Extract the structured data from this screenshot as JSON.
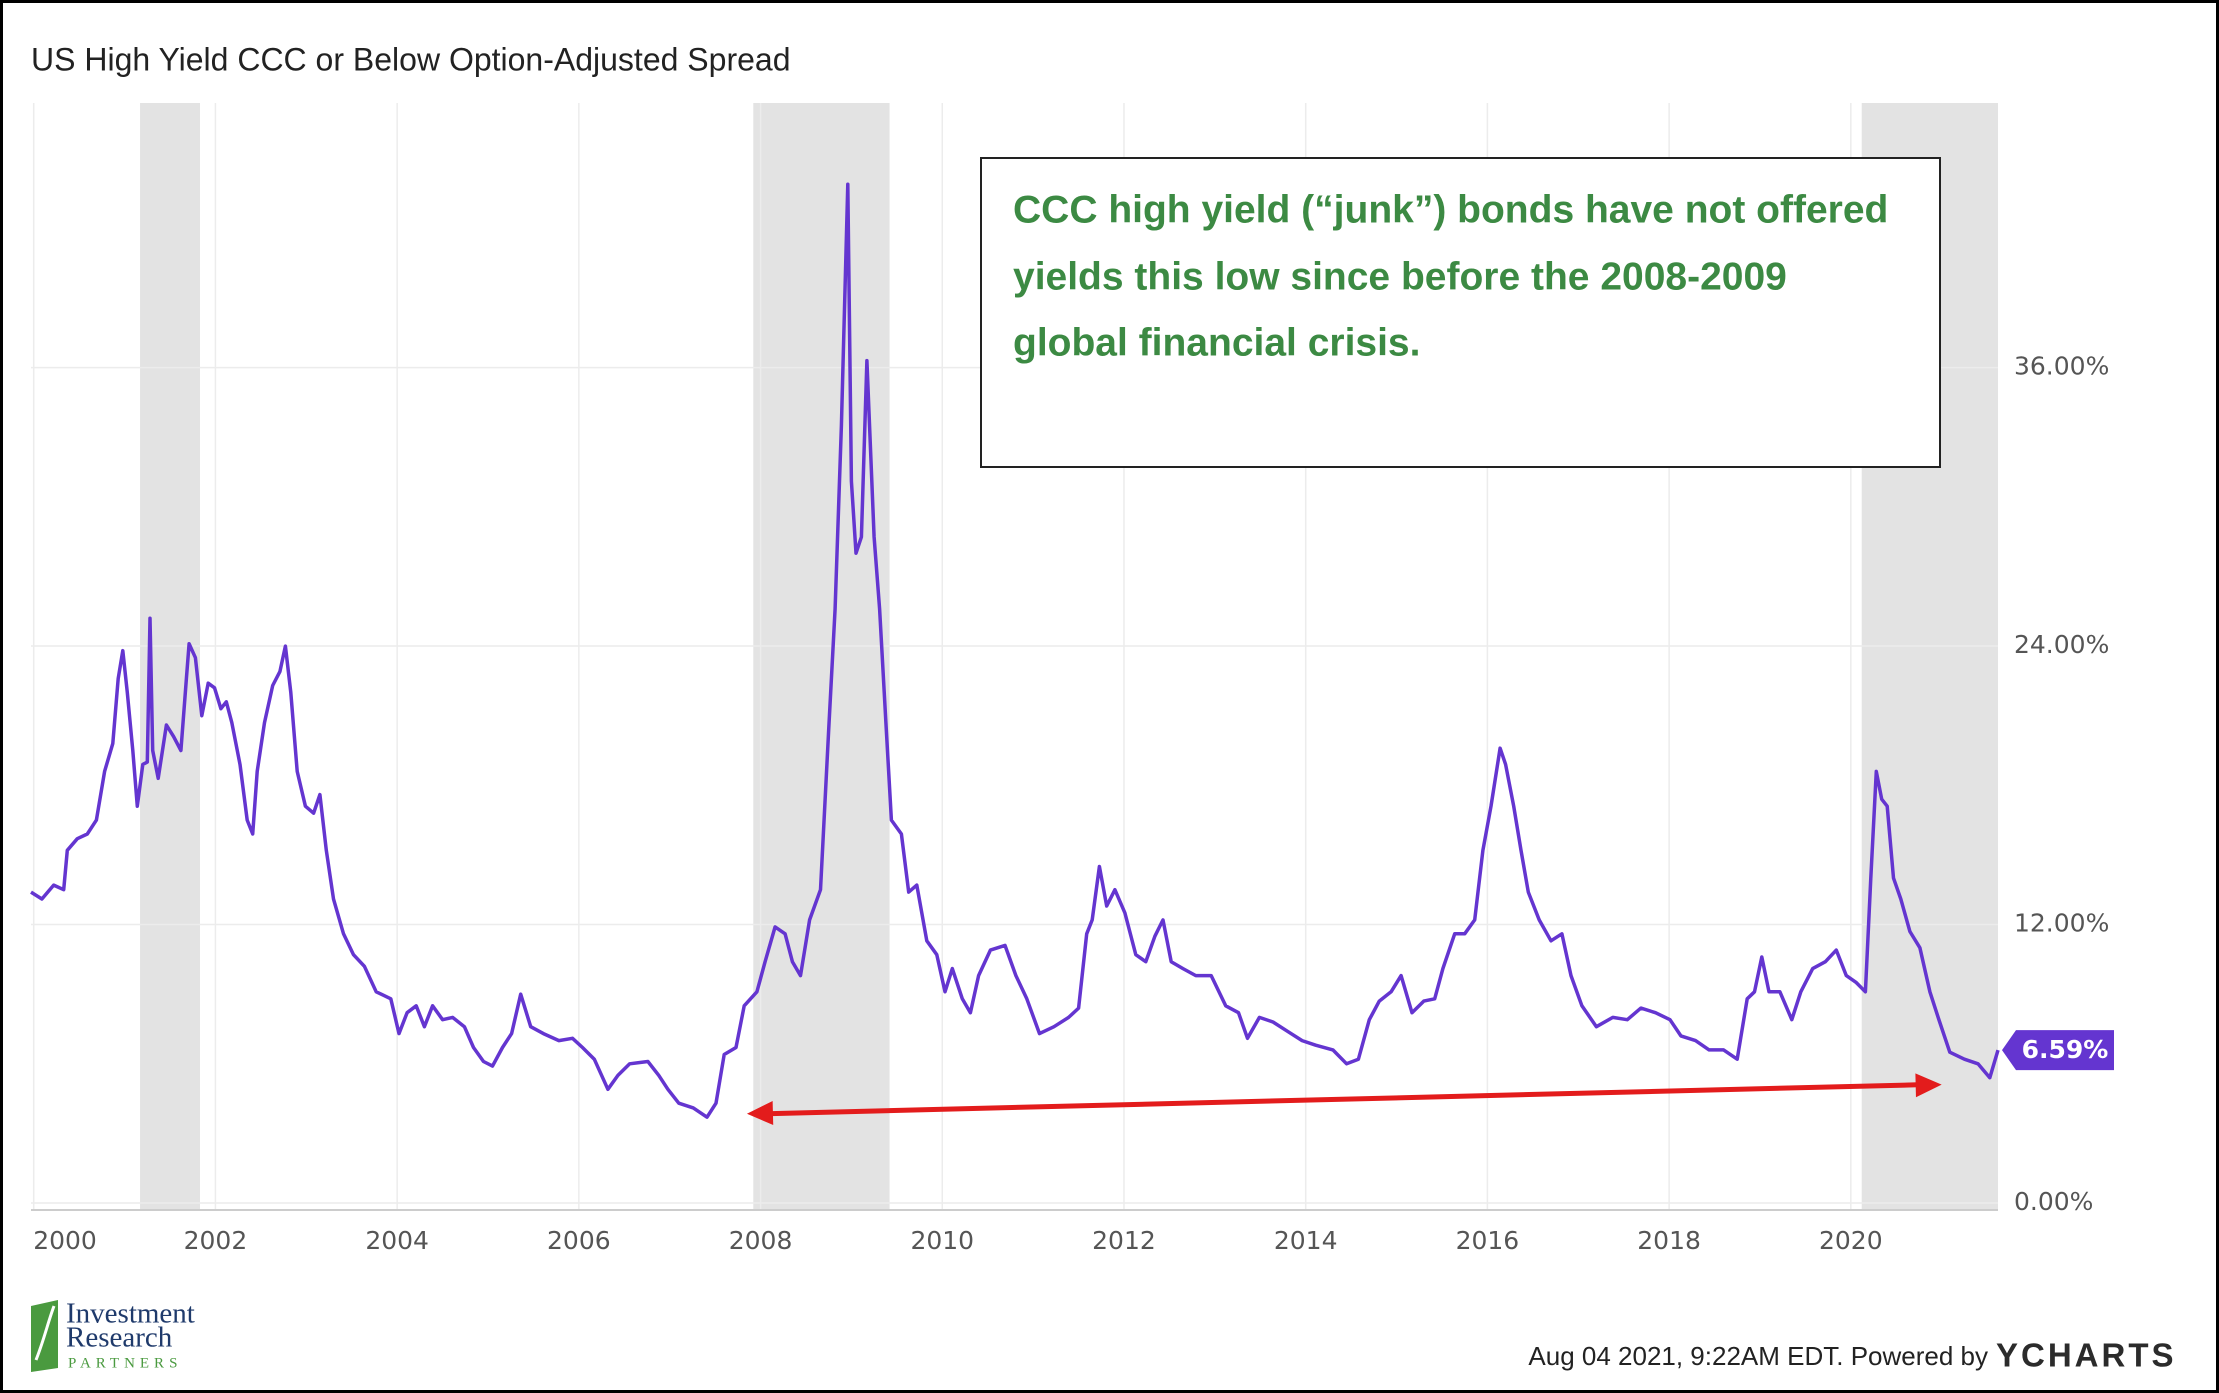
{
  "chart_data": {
    "type": "line",
    "title": "US High Yield CCC or Below Option-Adjusted Spread",
    "annotation": [
      "CCC high yield (“junk”) bonds have not offered",
      "yields this low since before the 2008-2009",
      "global financial crisis."
    ],
    "color": "#6435d0",
    "x": [
      1999.97,
      2000.09,
      2000.22,
      2000.33,
      2000.37,
      2000.48,
      2000.59,
      2000.69,
      2000.78,
      2000.87,
      2000.93,
      2000.98,
      2001.03,
      2001.09,
      2001.14,
      2001.2,
      2001.25,
      2001.28,
      2001.31,
      2001.37,
      2001.46,
      2001.54,
      2001.62,
      2001.68,
      2001.71,
      2001.78,
      2001.85,
      2001.92,
      2001.99,
      2002.06,
      2002.12,
      2002.18,
      2002.27,
      2002.35,
      2002.41,
      2002.46,
      2002.54,
      2002.63,
      2002.71,
      2002.77,
      2002.83,
      2002.9,
      2002.99,
      2003.08,
      2003.15,
      2003.22,
      2003.3,
      2003.41,
      2003.52,
      2003.64,
      2003.77,
      2003.93,
      2004.02,
      2004.11,
      2004.21,
      2004.3,
      2004.39,
      2004.5,
      2004.61,
      2004.74,
      2004.84,
      2004.95,
      2005.05,
      2005.16,
      2005.26,
      2005.36,
      2005.47,
      2005.61,
      2005.78,
      2005.93,
      2006.04,
      2006.17,
      2006.32,
      2006.43,
      2006.56,
      2006.76,
      2006.88,
      2006.98,
      2007.1,
      2007.26,
      2007.41,
      2007.51,
      2007.6,
      2007.73,
      2007.82,
      2007.96,
      2008.05,
      2008.16,
      2008.27,
      2008.35,
      2008.44,
      2008.54,
      2008.66,
      2008.75,
      2008.82,
      2008.89,
      2008.96,
      2009.0,
      2009.05,
      2009.11,
      2009.17,
      2009.25,
      2009.31,
      2009.38,
      2009.44,
      2009.55,
      2009.63,
      2009.72,
      2009.83,
      2009.94,
      2010.03,
      2010.11,
      2010.22,
      2010.31,
      2010.4,
      2010.53,
      2010.69,
      2010.81,
      2010.93,
      2011.07,
      2011.23,
      2011.39,
      2011.5,
      2011.59,
      2011.65,
      2011.73,
      2011.81,
      2011.9,
      2012.01,
      2012.13,
      2012.24,
      2012.34,
      2012.43,
      2012.52,
      2012.65,
      2012.79,
      2012.96,
      2013.12,
      2013.26,
      2013.36,
      2013.49,
      2013.64,
      2013.8,
      2013.96,
      2014.11,
      2014.3,
      2014.45,
      2014.58,
      2014.7,
      2014.81,
      2014.94,
      2015.05,
      2015.17,
      2015.3,
      2015.42,
      2015.51,
      2015.64,
      2015.75,
      2015.86,
      2015.95,
      2016.04,
      2016.14,
      2016.2,
      2016.29,
      2016.37,
      2016.45,
      2016.57,
      2016.7,
      2016.82,
      2016.92,
      2017.04,
      2017.2,
      2017.38,
      2017.54,
      2017.69,
      2017.85,
      2018.01,
      2018.13,
      2018.29,
      2018.44,
      2018.6,
      2018.75,
      2018.86,
      2018.94,
      2019.02,
      2019.1,
      2019.22,
      2019.35,
      2019.45,
      2019.58,
      2019.72,
      2019.84,
      2019.95,
      2020.06,
      2020.16,
      2020.22,
      2020.28,
      2020.34,
      2020.4,
      2020.47,
      2020.55,
      2020.65,
      2020.76,
      2020.87,
      2020.97,
      2021.09,
      2021.25,
      2021.4,
      2021.53,
      2021.62
    ],
    "values": [
      13.4,
      13.1,
      13.7,
      13.5,
      15.2,
      15.7,
      15.9,
      16.5,
      18.6,
      19.8,
      22.6,
      23.8,
      22.0,
      19.5,
      17.1,
      18.9,
      19.0,
      25.2,
      19.5,
      18.3,
      20.6,
      20.1,
      19.5,
      22.6,
      24.1,
      23.5,
      21.0,
      22.4,
      22.2,
      21.3,
      21.6,
      20.7,
      18.9,
      16.5,
      15.9,
      18.6,
      20.7,
      22.3,
      22.9,
      24.0,
      22.0,
      18.6,
      17.1,
      16.8,
      17.6,
      15.2,
      13.1,
      11.6,
      10.7,
      10.2,
      9.1,
      8.8,
      7.3,
      8.2,
      8.5,
      7.6,
      8.5,
      7.9,
      8.0,
      7.6,
      6.7,
      6.1,
      5.9,
      6.7,
      7.3,
      9.0,
      7.6,
      7.3,
      7.0,
      7.1,
      6.7,
      6.2,
      4.9,
      5.5,
      6.0,
      6.1,
      5.5,
      4.9,
      4.3,
      4.1,
      3.7,
      4.3,
      6.4,
      6.7,
      8.5,
      9.1,
      10.4,
      11.9,
      11.6,
      10.4,
      9.8,
      12.2,
      13.5,
      20.4,
      25.6,
      33.5,
      43.9,
      31.1,
      28.0,
      28.7,
      36.3,
      28.7,
      25.6,
      20.7,
      16.5,
      15.9,
      13.4,
      13.7,
      11.3,
      10.7,
      9.1,
      10.1,
      8.8,
      8.2,
      9.8,
      10.9,
      11.1,
      9.8,
      8.8,
      7.3,
      7.6,
      8.0,
      8.4,
      11.6,
      12.2,
      14.5,
      12.8,
      13.5,
      12.5,
      10.7,
      10.4,
      11.5,
      12.2,
      10.4,
      10.1,
      9.8,
      9.8,
      8.5,
      8.2,
      7.1,
      8.0,
      7.8,
      7.4,
      7.0,
      6.8,
      6.6,
      6.0,
      6.2,
      7.9,
      8.7,
      9.1,
      9.8,
      8.2,
      8.7,
      8.8,
      10.1,
      11.6,
      11.6,
      12.2,
      15.2,
      17.1,
      19.6,
      18.9,
      17.1,
      15.2,
      13.4,
      12.2,
      11.3,
      11.6,
      9.8,
      8.5,
      7.6,
      8.0,
      7.9,
      8.4,
      8.2,
      7.9,
      7.2,
      7.0,
      6.6,
      6.6,
      6.2,
      8.8,
      9.1,
      10.6,
      9.1,
      9.1,
      7.9,
      9.1,
      10.1,
      10.4,
      10.9,
      9.8,
      9.5,
      9.1,
      14.0,
      18.6,
      17.4,
      17.1,
      14.0,
      13.1,
      11.7,
      11.0,
      9.1,
      7.9,
      6.5,
      6.2,
      6.0,
      5.4,
      6.59
    ],
    "last_value": 6.59,
    "last_value_label": "6.59%",
    "recessions": [
      [
        2001.17,
        2001.83
      ],
      [
        2007.92,
        2009.42
      ],
      [
        2020.12,
        2021.62
      ]
    ],
    "arrow": {
      "x": [
        2007.85,
        2021.0
      ],
      "y": [
        3.85,
        5.1
      ],
      "color": "#e31c1c"
    },
    "xlim": [
      1999.97,
      2021.62
    ],
    "ylim": [
      -0.3,
      47.4
    ],
    "xticks": [
      2000,
      2002,
      2004,
      2006,
      2008,
      2010,
      2012,
      2014,
      2016,
      2018,
      2020
    ],
    "yticks": [
      {
        "value": 0,
        "label": "0.00%"
      },
      {
        "value": 12,
        "label": "12.00%"
      },
      {
        "value": 24,
        "label": "24.00%"
      },
      {
        "value": 36,
        "label": "36.00%"
      }
    ],
    "grid": true
  },
  "footer": {
    "timestamp": "Aug 04 2021, 9:22AM EDT. Powered by",
    "brand": "YCHARTS"
  },
  "logo": [
    "Investment",
    "Research",
    "PARTNERS"
  ]
}
